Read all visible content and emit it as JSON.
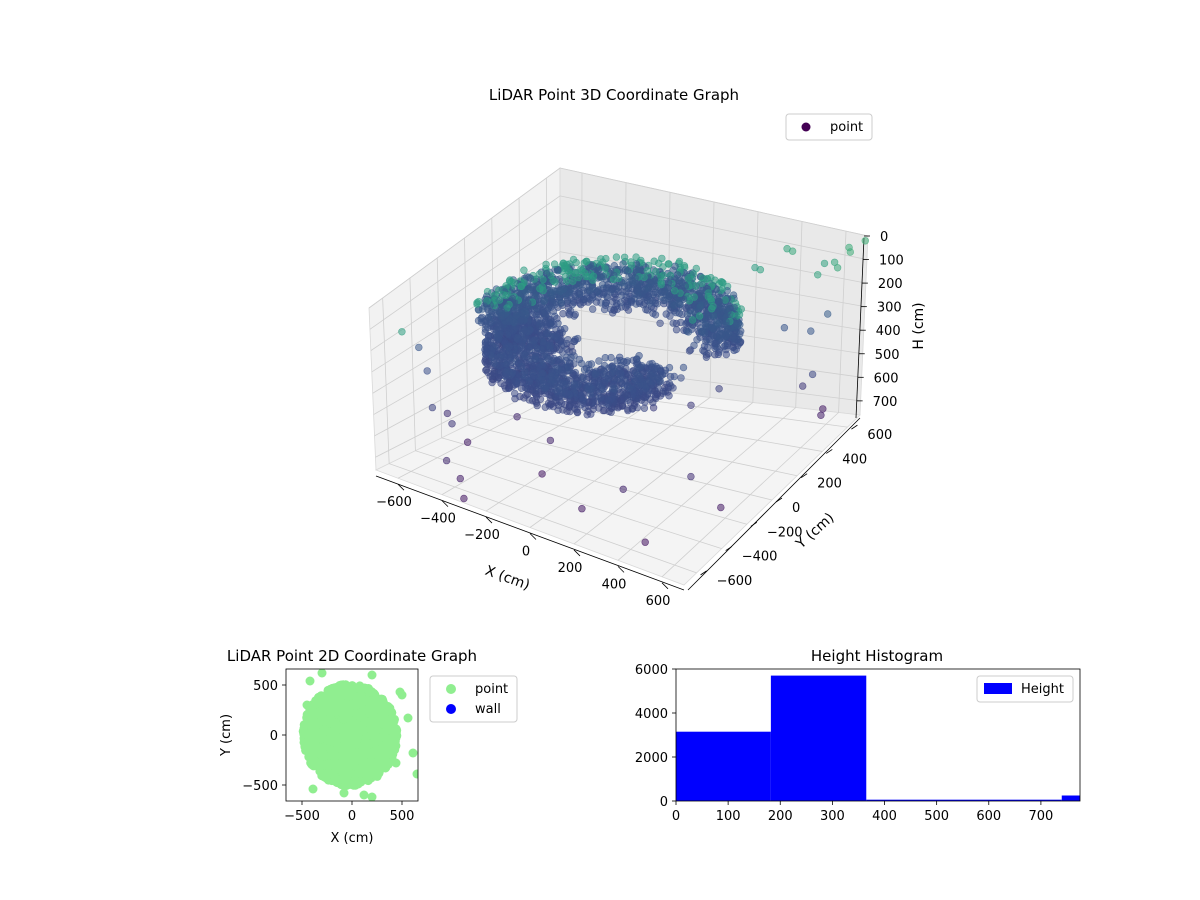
{
  "chart_data": [
    {
      "type": "scatter",
      "projection": "3d",
      "title": "LiDAR Point 3D Coordinate Graph",
      "xlabel": "X (cm)",
      "ylabel": "Y (cm)",
      "zlabel": "H (cm)",
      "xticks": [
        -600,
        -400,
        -200,
        0,
        200,
        400,
        600
      ],
      "yticks": [
        -600,
        -400,
        -200,
        0,
        200,
        400,
        600
      ],
      "zticks": [
        0,
        100,
        200,
        300,
        400,
        500,
        600,
        700
      ],
      "xlim": [
        -700,
        700
      ],
      "ylim": [
        -700,
        700
      ],
      "zlim": [
        0,
        760
      ],
      "z_inverted": true,
      "grid": true,
      "legend": {
        "position": "top-right",
        "entries": [
          {
            "label": "point",
            "color": "#440154"
          }
        ]
      },
      "colormap": "viridis",
      "series": [
        {
          "name": "point",
          "shape": "two curved bands (dense semicircular clusters) plus sparse outliers",
          "dense_clusters": [
            {
              "center": [
                -80,
                40,
                240
              ],
              "radius_range": [
                300,
                520
              ],
              "angle_range_deg": [
                20,
                200
              ],
              "height_range": [
                180,
                340
              ],
              "count": 1400
            },
            {
              "center": [
                -120,
                -20,
                330
              ],
              "radius_range": [
                80,
                420
              ],
              "angle_range_deg": [
                150,
                360
              ],
              "height_range": [
                280,
                380
              ],
              "count": 1300
            }
          ],
          "outliers": [
            [
              -650,
              -550,
              160
            ],
            [
              -620,
              -480,
              250
            ],
            [
              -560,
              -520,
              320
            ],
            [
              -480,
              -620,
              420
            ],
            [
              -430,
              -560,
              500
            ],
            [
              -380,
              -690,
              600
            ],
            [
              -350,
              -640,
              690
            ],
            [
              -300,
              -700,
              740
            ],
            [
              -560,
              -380,
              560
            ],
            [
              -520,
              -300,
              700
            ],
            [
              -200,
              -200,
              640
            ],
            [
              -180,
              -300,
              740
            ],
            [
              120,
              -500,
              720
            ],
            [
              250,
              -400,
              640
            ],
            [
              420,
              -520,
              760
            ],
            [
              500,
              -300,
              560
            ],
            [
              580,
              -200,
              720
            ],
            [
              600,
              400,
              500
            ],
            [
              620,
              520,
              680
            ],
            [
              560,
              640,
              720
            ],
            [
              640,
              660,
              40
            ],
            [
              680,
              600,
              20
            ],
            [
              700,
              680,
              10
            ],
            [
              660,
              540,
              60
            ],
            [
              600,
              620,
              90
            ],
            [
              560,
              560,
              120
            ],
            [
              520,
              680,
              140
            ],
            [
              420,
              600,
              70
            ],
            [
              360,
              660,
              100
            ],
            [
              300,
              560,
              150
            ],
            [
              240,
              620,
              180
            ],
            [
              680,
              440,
              200
            ],
            [
              640,
              380,
              250
            ],
            [
              700,
              300,
              380
            ],
            [
              520,
              380,
              260
            ],
            [
              -640,
              300,
              330
            ],
            [
              -600,
              120,
              380
            ],
            [
              -560,
              50,
              420
            ],
            [
              380,
              120,
              420
            ],
            [
              300,
              40,
              470
            ],
            [
              200,
              -80,
              450
            ],
            [
              -400,
              -120,
              620
            ]
          ]
        }
      ]
    },
    {
      "type": "scatter",
      "title": "LiDAR Point 2D Coordinate Graph",
      "xlabel": "X (cm)",
      "ylabel": "Y (cm)",
      "xticks": [
        -500,
        0,
        500
      ],
      "yticks": [
        -500,
        0,
        500
      ],
      "xlim": [
        -660,
        660
      ],
      "ylim": [
        -660,
        660
      ],
      "grid": false,
      "legend": {
        "position": "outside-right",
        "entries": [
          {
            "label": "point",
            "color": "#90ee90"
          },
          {
            "label": "wall",
            "color": "#0000ff"
          }
        ]
      },
      "series": [
        {
          "name": "point",
          "color": "#90ee90",
          "cloud": {
            "center": [
              -20,
              0
            ],
            "rx": 470,
            "ry": 510,
            "count": 1500
          },
          "outliers": [
            [
              -420,
              540
            ],
            [
              -300,
              620
            ],
            [
              200,
              600
            ],
            [
              480,
              430
            ],
            [
              500,
              400
            ],
            [
              560,
              170
            ],
            [
              610,
              -180
            ],
            [
              650,
              -390
            ],
            [
              -390,
              -540
            ],
            [
              120,
              -600
            ],
            [
              200,
              -620
            ],
            [
              -80,
              -580
            ],
            [
              440,
              -280
            ],
            [
              -450,
              300
            ]
          ]
        },
        {
          "name": "wall",
          "color": "#0000ff",
          "points": []
        }
      ]
    },
    {
      "type": "histogram",
      "title": "Height Histogram",
      "xlabel": "",
      "ylabel": "",
      "xticks": [
        0,
        100,
        200,
        300,
        400,
        500,
        600,
        700
      ],
      "yticks": [
        0,
        2000,
        4000,
        6000
      ],
      "xlim": [
        0,
        775
      ],
      "ylim": [
        0,
        6000
      ],
      "legend": {
        "position": "top-right",
        "entries": [
          {
            "label": "Height",
            "color": "#0000ff"
          }
        ]
      },
      "series": [
        {
          "name": "Height",
          "color": "#0000ff",
          "bins": [
            {
              "start": 0,
              "end": 182,
              "count": 3150
            },
            {
              "start": 182,
              "end": 365,
              "count": 5700
            },
            {
              "start": 365,
              "end": 740,
              "count": 60
            },
            {
              "start": 740,
              "end": 775,
              "count": 250
            }
          ]
        }
      ]
    }
  ]
}
